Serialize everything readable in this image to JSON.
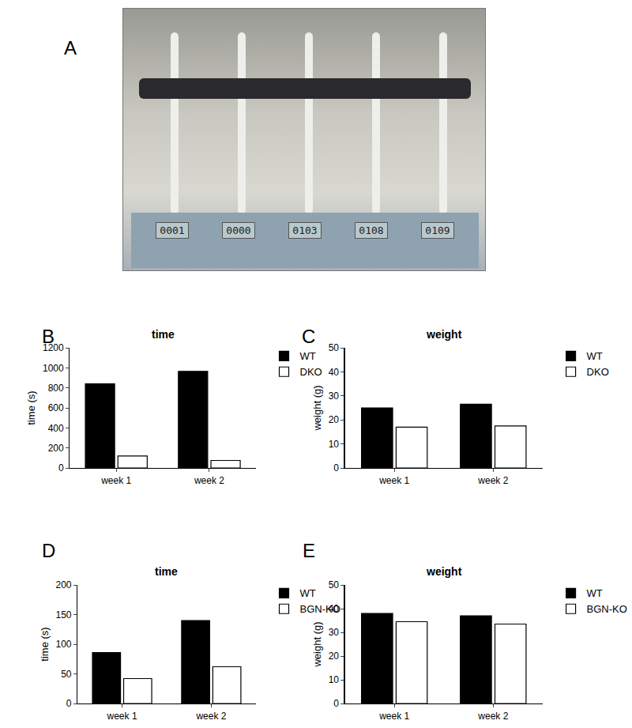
{
  "photo": {
    "annotation": "A",
    "displays": [
      "0001",
      "0000",
      "0103",
      "0108",
      "0109"
    ]
  },
  "chart_data": [
    {
      "type": "bar",
      "annotation": "B",
      "title": "time",
      "y_label": "time (s)",
      "categories": [
        "week 1",
        "week 2"
      ],
      "series": [
        {
          "name": "WT",
          "color": "#000000",
          "values": [
            840,
            965
          ]
        },
        {
          "name": "DKO",
          "color": "#ffffff",
          "values": [
            120,
            75
          ]
        }
      ],
      "ylim": [
        0,
        1200
      ],
      "yticks": [
        0,
        200,
        400,
        600,
        800,
        1000,
        1200
      ],
      "grid": false,
      "legend": "right"
    },
    {
      "type": "bar",
      "annotation": "C",
      "title": "weight",
      "y_label": "weight (g)",
      "categories": [
        "week 1",
        "week 2"
      ],
      "series": [
        {
          "name": "WT",
          "color": "#000000",
          "values": [
            25,
            26.5
          ]
        },
        {
          "name": "DKO",
          "color": "#ffffff",
          "values": [
            17,
            17.5
          ]
        }
      ],
      "ylim": [
        0,
        50
      ],
      "yticks": [
        0,
        10,
        20,
        30,
        40,
        50
      ],
      "grid": false,
      "legend": "right"
    },
    {
      "type": "bar",
      "annotation": "D",
      "title": "time",
      "y_label": "time (s)",
      "categories": [
        "week 1",
        "week 2"
      ],
      "series": [
        {
          "name": "WT",
          "color": "#000000",
          "values": [
            86,
            140
          ]
        },
        {
          "name": "BGN-KO",
          "color": "#ffffff",
          "values": [
            42,
            62
          ]
        }
      ],
      "ylim": [
        0,
        200
      ],
      "yticks": [
        0,
        50,
        100,
        150,
        200
      ],
      "grid": false,
      "legend": "right"
    },
    {
      "type": "bar",
      "annotation": "E",
      "title": "weight",
      "y_label": "weight (g)",
      "categories": [
        "week 1",
        "week 2"
      ],
      "series": [
        {
          "name": "WT",
          "color": "#000000",
          "values": [
            38,
            37
          ]
        },
        {
          "name": "BGN-KO",
          "color": "#ffffff",
          "values": [
            34.5,
            33.5
          ]
        }
      ],
      "ylim": [
        0,
        50
      ],
      "yticks": [
        0,
        10,
        20,
        30,
        40,
        50
      ],
      "grid": false,
      "legend": "right"
    }
  ]
}
